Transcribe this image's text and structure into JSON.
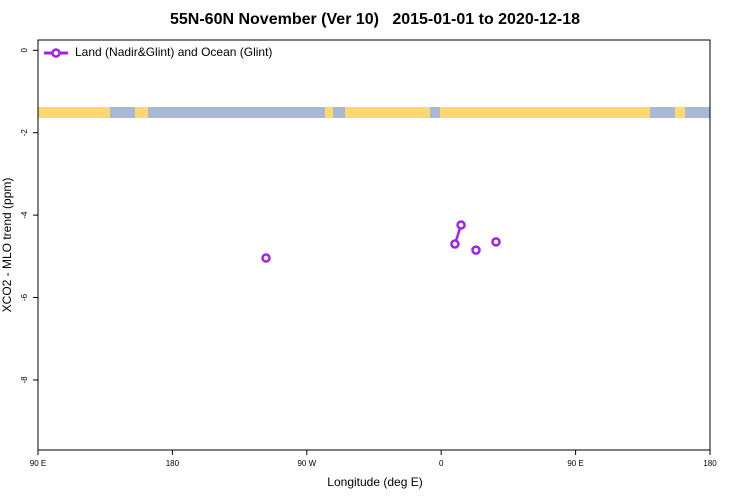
{
  "chart_data": {
    "type": "line",
    "title": "55N-60N November (Ver 10)   2015-01-01 to 2020-12-18",
    "x_label": "Longitude (deg E)",
    "y_label": "XCO2 - MLO trend (ppm)",
    "x": [
      -117.3,
      null,
      9.2,
      13.3,
      null,
      23.3,
      null,
      36.7
    ],
    "series": [
      {
        "name": "Land (Nadir&Glint) and Ocean (Glint)",
        "color": "#a020f0",
        "values": [
          -5.04,
          null,
          -4.7,
          -4.24,
          null,
          -4.85,
          null,
          -4.65
        ]
      }
    ],
    "xlim": [
      -270,
      180
    ],
    "xticks": [
      {
        "value": -270,
        "label": "90 E"
      },
      {
        "value": -180,
        "label": "180"
      },
      {
        "value": -90,
        "label": "90 W"
      },
      0,
      {
        "value": 90,
        "label": "90 E"
      },
      180
    ],
    "ylim": [
      -9.7,
      0.25
    ],
    "yticks": [
      0,
      -2,
      -4,
      -6,
      -8
    ],
    "legend": "top-left"
  }
}
